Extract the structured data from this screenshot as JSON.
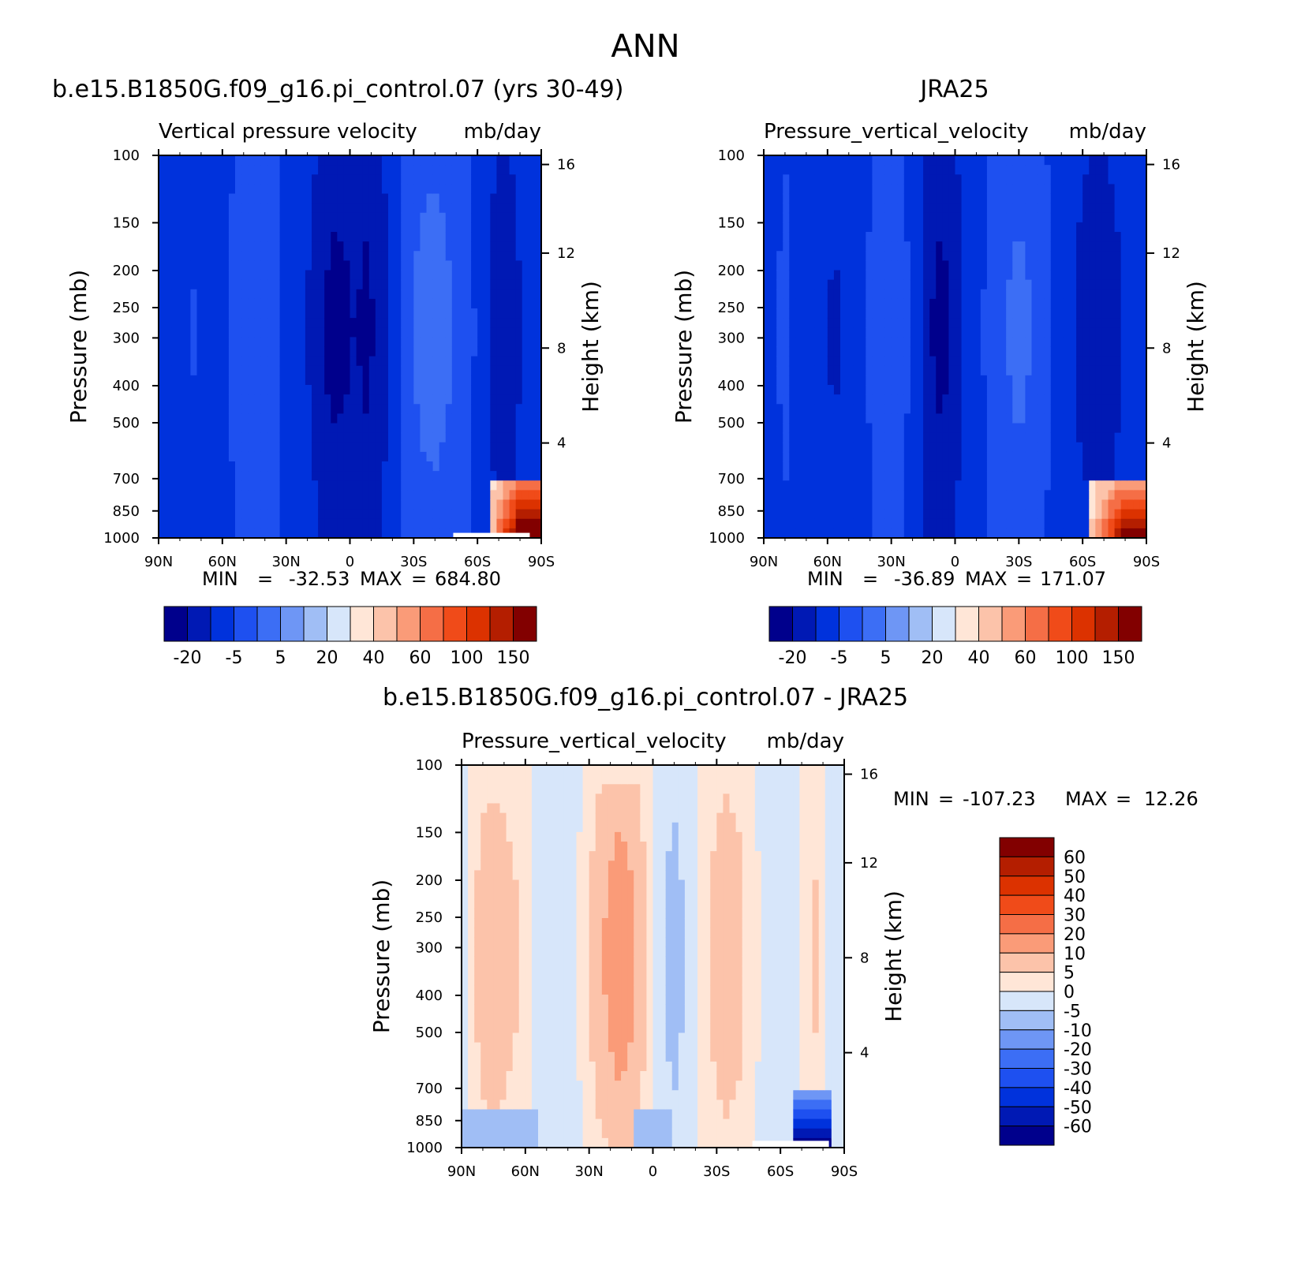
{
  "figure": {
    "title": "ANN"
  },
  "colors": {
    "model_scale": [
      "#00008c",
      "#0019b4",
      "#0032dc",
      "#1e50f0",
      "#3c6ef5",
      "#6e96f5",
      "#a0bef5",
      "#d7e6fa",
      "#ffe6d7",
      "#fcc3aa",
      "#fa9b78",
      "#f56e46",
      "#f04b19",
      "#dc3200",
      "#b41e00",
      "#820000"
    ],
    "diff_scale": [
      "#00008c",
      "#0019b4",
      "#0032dc",
      "#1e50f0",
      "#3c6ef5",
      "#6e96f5",
      "#a0bef5",
      "#d7e6fa",
      "#ffe6d7",
      "#fcc3aa",
      "#fa9b78",
      "#f56e46",
      "#f04b19",
      "#dc3200",
      "#b41e00",
      "#820000"
    ]
  },
  "chart_data": [
    {
      "type": "heatmap",
      "case_label": "b.e15.B1850G.f09_g16.pi_control.07 (yrs 30-49)",
      "variable_title": "Vertical pressure velocity",
      "units": "mb/day",
      "ylabel": "Pressure (mb)",
      "ylabel_right": "Height (km)",
      "x_ticks": [
        "90N",
        "60N",
        "30N",
        "0",
        "30S",
        "60S",
        "90S"
      ],
      "y_ticks": [
        100,
        150,
        200,
        250,
        300,
        400,
        500,
        700,
        850,
        1000
      ],
      "ylim": [
        1000,
        100
      ],
      "height_ticks": [
        4,
        8,
        12,
        16
      ],
      "stats": {
        "min_label": "MIN",
        "min": "-32.53",
        "max_label": "MAX",
        "max": "684.80"
      },
      "colorbar": {
        "orientation": "horizontal",
        "labels": [
          "-20",
          "-5",
          "5",
          "20",
          "40",
          "60",
          "100",
          "150"
        ]
      },
      "profile": [
        0.33,
        0.35,
        0.32,
        0.36,
        0.3,
        0.33,
        0.35,
        0.42,
        0.45,
        0.43,
        0.4,
        0.34,
        0.3,
        0.2,
        0.1,
        0.02,
        0.04,
        0.08,
        0.03,
        0.12,
        0.22,
        0.4,
        0.5,
        0.57,
        0.58,
        0.52,
        0.44,
        0.38,
        0.28,
        0.15,
        0.1,
        0.2,
        0.25,
        0.3
      ],
      "hot_corner": {
        "x_from": 0.86,
        "p_from": 700,
        "strength": 1.0
      },
      "missing_strip": {
        "x_from": 0.77,
        "x_to": 0.97,
        "p_from": 970,
        "label": ""
      }
    },
    {
      "type": "heatmap",
      "case_label": "JRA25",
      "variable_title": "Pressure_vertical_velocity",
      "units": "mb/day",
      "ylabel": "Pressure (mb)",
      "ylabel_right": "Height (km)",
      "x_ticks": [
        "90N",
        "60N",
        "30N",
        "0",
        "30S",
        "60S",
        "90S"
      ],
      "y_ticks": [
        100,
        150,
        200,
        250,
        300,
        400,
        500,
        700,
        850,
        1000
      ],
      "ylim": [
        1000,
        100
      ],
      "height_ticks": [
        4,
        8,
        12,
        16
      ],
      "stats": {
        "min_label": "MIN",
        "min": "-36.89",
        "max_label": "MAX",
        "max": "171.07"
      },
      "colorbar": {
        "orientation": "horizontal",
        "labels": [
          "-20",
          "-5",
          "5",
          "20",
          "40",
          "60",
          "100",
          "150"
        ]
      },
      "profile": [
        0.3,
        0.35,
        0.38,
        0.32,
        0.28,
        0.24,
        0.2,
        0.22,
        0.28,
        0.36,
        0.42,
        0.46,
        0.4,
        0.3,
        0.12,
        0.03,
        0.06,
        0.18,
        0.3,
        0.36,
        0.44,
        0.5,
        0.54,
        0.5,
        0.42,
        0.34,
        0.26,
        0.2,
        0.14,
        0.1,
        0.16,
        0.22,
        0.28,
        0.34
      ],
      "hot_corner": {
        "x_from": 0.85,
        "p_from": 700,
        "strength": 0.85
      }
    },
    {
      "type": "heatmap",
      "case_label": "b.e15.B1850G.f09_g16.pi_control.07 - JRA25",
      "variable_title": "Pressure_vertical_velocity",
      "units": "mb/day",
      "ylabel": "Pressure (mb)",
      "ylabel_right": "Height (km)",
      "x_ticks": [
        "90N",
        "60N",
        "30N",
        "0",
        "30S",
        "60S",
        "90S"
      ],
      "y_ticks": [
        100,
        150,
        200,
        250,
        300,
        400,
        500,
        700,
        850,
        1000
      ],
      "ylim": [
        1000,
        100
      ],
      "height_ticks": [
        4,
        8,
        12,
        16
      ],
      "stats": {
        "min_label": "MIN",
        "min": "-107.23",
        "max_label": "MAX",
        "max": "12.26"
      },
      "colorbar": {
        "orientation": "vertical",
        "labels": [
          "60",
          "50",
          "40",
          "30",
          "20",
          "10",
          "5",
          "0",
          "-5",
          "-10",
          "-20",
          "-30",
          "-40",
          "-50",
          "-60"
        ]
      },
      "diff_profile": [
        -0.1,
        0.5,
        0.9,
        0.8,
        0.6,
        0.2,
        -0.2,
        -0.5,
        -0.4,
        0.1,
        0.7,
        1.2,
        1.6,
        1.2,
        0.5,
        -0.2,
        -0.9,
        -0.5,
        0.2,
        0.6,
        0.9,
        0.7,
        0.3,
        -0.2,
        -0.5,
        -0.3,
        0.4,
        0.6,
        -0.2,
        -0.4
      ],
      "cold_corner": {
        "x_from": 0.87,
        "x_to": 0.96,
        "p_from": 700
      },
      "missing_strip": {
        "x_from": 0.76,
        "x_to": 0.96,
        "p_from": 960,
        "label": ""
      }
    }
  ]
}
